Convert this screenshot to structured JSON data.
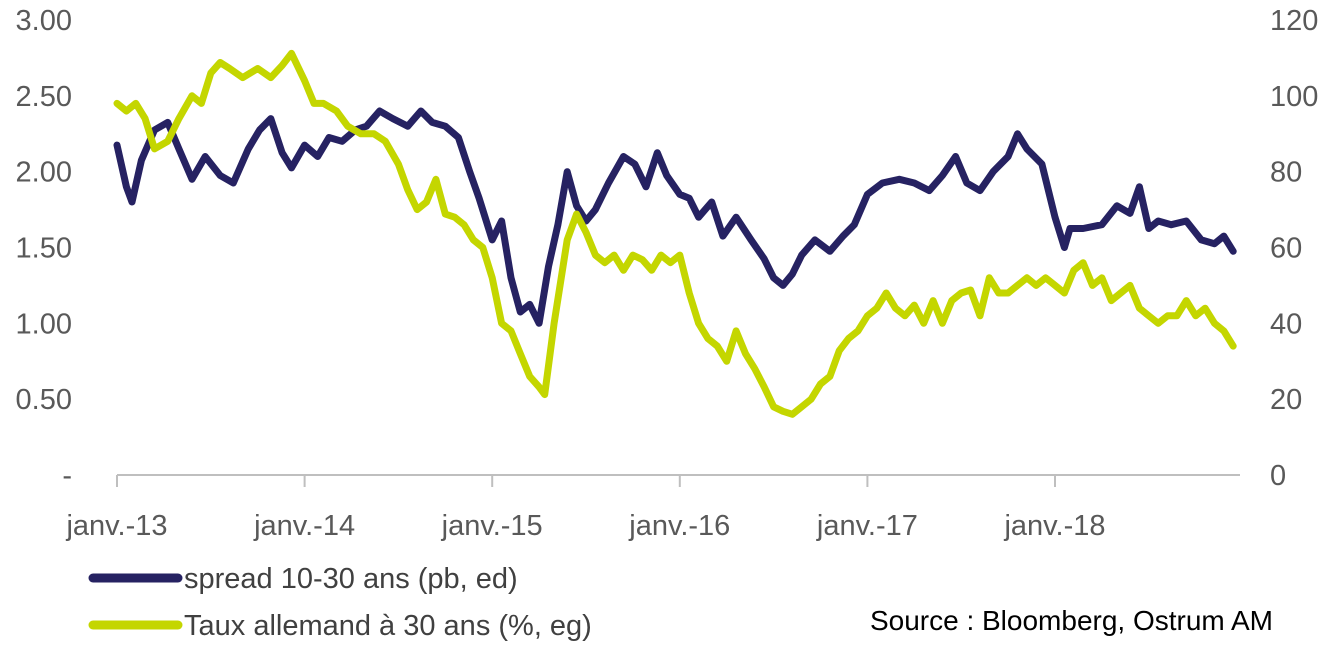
{
  "chart_data": {
    "type": "line",
    "x_tick_labels": [
      "janv.-13",
      "janv.-14",
      "janv.-15",
      "janv.-16",
      "janv.-17",
      "janv.-18"
    ],
    "x_range": [
      2013.0,
      2018.95
    ],
    "y_left": {
      "range": [
        0,
        3
      ],
      "tick_values": [
        0,
        0.5,
        1.0,
        1.5,
        2.0,
        2.5,
        3.0
      ],
      "tick_labels": [
        "-",
        "0.50",
        "1.00",
        "1.50",
        "2.00",
        "2.50",
        "3.00"
      ]
    },
    "y_right": {
      "range": [
        0,
        120
      ],
      "tick_values": [
        0,
        20,
        40,
        60,
        80,
        100,
        120
      ],
      "tick_labels": [
        "0",
        "20",
        "40",
        "60",
        "80",
        "100",
        "120"
      ]
    },
    "series": [
      {
        "name": "spread 10-30 ans (pb, ed)",
        "axis": "right",
        "color": "#262262",
        "x": [
          2013.0,
          2013.05,
          2013.08,
          2013.13,
          2013.2,
          2013.27,
          2013.33,
          2013.4,
          2013.47,
          2013.55,
          2013.62,
          2013.7,
          2013.76,
          2013.82,
          2013.88,
          2013.93,
          2014.0,
          2014.07,
          2014.13,
          2014.2,
          2014.27,
          2014.33,
          2014.4,
          2014.47,
          2014.55,
          2014.62,
          2014.68,
          2014.75,
          2014.82,
          2014.88,
          2014.93,
          2015.0,
          2015.05,
          2015.1,
          2015.15,
          2015.2,
          2015.25,
          2015.3,
          2015.35,
          2015.4,
          2015.45,
          2015.5,
          2015.55,
          2015.62,
          2015.7,
          2015.76,
          2015.82,
          2015.88,
          2015.93,
          2016.0,
          2016.05,
          2016.1,
          2016.17,
          2016.23,
          2016.3,
          2016.38,
          2016.45,
          2016.5,
          2016.55,
          2016.6,
          2016.65,
          2016.72,
          2016.8,
          2016.87,
          2016.93,
          2017.0,
          2017.08,
          2017.17,
          2017.25,
          2017.33,
          2017.4,
          2017.47,
          2017.53,
          2017.6,
          2017.67,
          2017.75,
          2017.8,
          2017.85,
          2017.93,
          2018.0,
          2018.05,
          2018.08,
          2018.15,
          2018.25,
          2018.33,
          2018.4,
          2018.45,
          2018.5,
          2018.55,
          2018.62,
          2018.7,
          2018.78,
          2018.85,
          2018.9,
          2018.95
        ],
        "values": [
          87,
          76,
          72,
          83,
          91,
          93,
          86,
          78,
          84,
          79,
          77,
          86,
          91,
          94,
          85,
          81,
          87,
          84,
          89,
          88,
          91,
          92,
          96,
          94,
          92,
          96,
          93,
          92,
          89,
          80,
          73,
          62,
          67,
          52,
          43,
          45,
          40,
          55,
          66,
          80,
          71,
          67,
          70,
          77,
          84,
          82,
          76,
          85,
          79,
          74,
          73,
          68,
          72,
          63,
          68,
          62,
          57,
          52,
          50,
          53,
          58,
          62,
          59,
          63,
          66,
          74,
          77,
          78,
          77,
          75,
          79,
          84,
          77,
          75,
          80,
          84,
          90,
          86,
          82,
          68,
          60,
          65,
          65,
          66,
          71,
          69,
          76,
          65,
          67,
          66,
          67,
          62,
          61,
          63,
          59
        ]
      },
      {
        "name": "Taux allemand à 30 ans (%, eg)",
        "axis": "left",
        "color": "#c4d600",
        "x": [
          2013.0,
          2013.05,
          2013.1,
          2013.15,
          2013.2,
          2013.27,
          2013.33,
          2013.4,
          2013.45,
          2013.5,
          2013.55,
          2013.6,
          2013.67,
          2013.75,
          2013.82,
          2013.88,
          2013.93,
          2014.0,
          2014.05,
          2014.1,
          2014.17,
          2014.23,
          2014.3,
          2014.37,
          2014.43,
          2014.5,
          2014.55,
          2014.6,
          2014.65,
          2014.7,
          2014.75,
          2014.8,
          2014.85,
          2014.9,
          2014.95,
          2015.0,
          2015.05,
          2015.1,
          2015.15,
          2015.2,
          2015.25,
          2015.28,
          2015.33,
          2015.4,
          2015.45,
          2015.5,
          2015.55,
          2015.6,
          2015.65,
          2015.7,
          2015.75,
          2015.8,
          2015.85,
          2015.9,
          2015.95,
          2016.0,
          2016.05,
          2016.1,
          2016.15,
          2016.2,
          2016.25,
          2016.3,
          2016.35,
          2016.4,
          2016.45,
          2016.5,
          2016.55,
          2016.6,
          2016.65,
          2016.7,
          2016.75,
          2016.8,
          2016.85,
          2016.9,
          2016.95,
          2017.0,
          2017.05,
          2017.1,
          2017.15,
          2017.2,
          2017.25,
          2017.3,
          2017.35,
          2017.4,
          2017.45,
          2017.5,
          2017.55,
          2017.6,
          2017.65,
          2017.7,
          2017.75,
          2017.8,
          2017.85,
          2017.9,
          2017.95,
          2018.0,
          2018.05,
          2018.1,
          2018.15,
          2018.2,
          2018.25,
          2018.3,
          2018.35,
          2018.4,
          2018.45,
          2018.5,
          2018.55,
          2018.6,
          2018.65,
          2018.7,
          2018.75,
          2018.8,
          2018.85,
          2018.9,
          2018.95
        ],
        "values": [
          2.45,
          2.4,
          2.45,
          2.35,
          2.15,
          2.2,
          2.35,
          2.5,
          2.45,
          2.65,
          2.72,
          2.68,
          2.62,
          2.68,
          2.62,
          2.7,
          2.78,
          2.6,
          2.45,
          2.45,
          2.4,
          2.3,
          2.25,
          2.25,
          2.2,
          2.05,
          1.88,
          1.75,
          1.8,
          1.95,
          1.72,
          1.7,
          1.65,
          1.55,
          1.5,
          1.3,
          1.0,
          0.95,
          0.8,
          0.65,
          0.58,
          0.53,
          1.0,
          1.55,
          1.72,
          1.6,
          1.45,
          1.4,
          1.45,
          1.35,
          1.45,
          1.42,
          1.35,
          1.45,
          1.4,
          1.45,
          1.2,
          1.0,
          0.9,
          0.85,
          0.75,
          0.95,
          0.8,
          0.7,
          0.58,
          0.45,
          0.42,
          0.4,
          0.45,
          0.5,
          0.6,
          0.65,
          0.82,
          0.9,
          0.95,
          1.05,
          1.1,
          1.2,
          1.1,
          1.05,
          1.12,
          1.0,
          1.15,
          1.0,
          1.15,
          1.2,
          1.22,
          1.05,
          1.3,
          1.2,
          1.2,
          1.25,
          1.3,
          1.25,
          1.3,
          1.25,
          1.2,
          1.35,
          1.4,
          1.25,
          1.3,
          1.15,
          1.2,
          1.25,
          1.1,
          1.05,
          1.0,
          1.05,
          1.05,
          1.15,
          1.05,
          1.1,
          1.0,
          0.95,
          0.85
        ]
      }
    ]
  },
  "legend": [
    {
      "label": "spread 10-30 ans (pb, ed)",
      "color": "#262262"
    },
    {
      "label": "Taux allemand à 30 ans (%, eg)",
      "color": "#c4d600"
    }
  ],
  "source": "Source : Bloomberg, Ostrum AM"
}
